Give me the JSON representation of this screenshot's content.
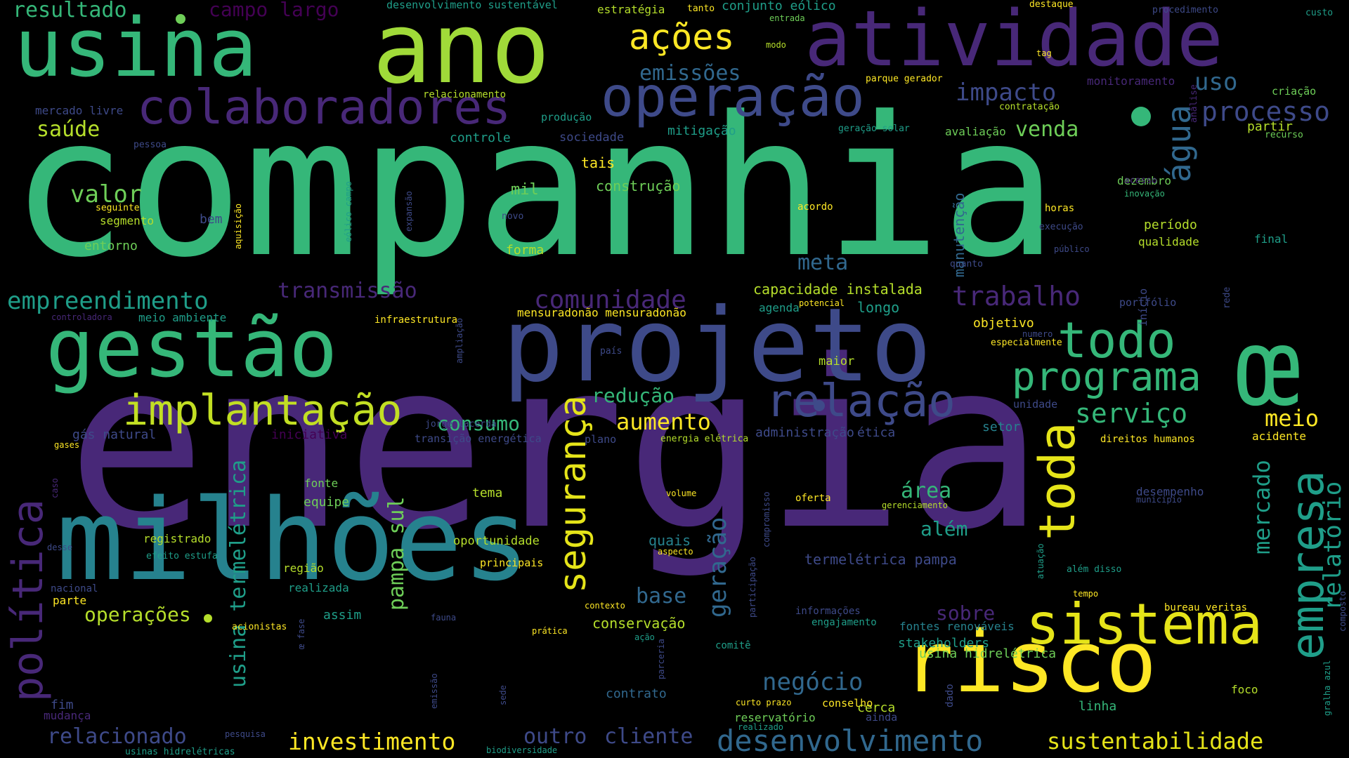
{
  "palette": {
    "deep_purple": "#440154",
    "purple": "#482878",
    "indigo": "#3e4a89",
    "blue": "#31688e",
    "teal": "#26828e",
    "green_teal": "#1f9e89",
    "green": "#35b779",
    "lime": "#6ece58",
    "yellow_green": "#b5de2b",
    "yellow": "#fde725"
  },
  "words": [
    {
      "text": "energia",
      "color": "#482878"
    },
    {
      "text": "companhia",
      "color": "#35b779"
    },
    {
      "text": "milhões",
      "color": "#26828e"
    },
    {
      "text": "projeto",
      "color": "#3e4a89"
    },
    {
      "text": "gestão",
      "color": "#35b779"
    },
    {
      "text": "ano",
      "color": "#a0da39"
    },
    {
      "text": "usina",
      "color": "#35b779"
    },
    {
      "text": "atividade",
      "color": "#482878"
    },
    {
      "text": "risco",
      "color": "#fde725"
    },
    {
      "text": "colaboradores",
      "color": "#482878"
    },
    {
      "text": "operação",
      "color": "#3e4a89"
    },
    {
      "text": "sistema",
      "color": "#e5e419"
    },
    {
      "text": "relação",
      "color": "#3e4a89"
    },
    {
      "text": "implantação",
      "color": "#c2df23"
    },
    {
      "text": "todo",
      "color": "#35b779"
    },
    {
      "text": "programa",
      "color": "#35b779"
    },
    {
      "text": "empresa",
      "color": "#1f9e89"
    },
    {
      "text": "política",
      "color": "#482878"
    },
    {
      "text": "segurança",
      "color": "#e5e419"
    },
    {
      "text": "toda",
      "color": "#e5e419"
    },
    {
      "text": "água",
      "color": "#31688e"
    },
    {
      "text": "desenvolvimento",
      "color": "#31688e"
    },
    {
      "text": "sustentabilidade",
      "color": "#e5e419"
    },
    {
      "text": "investimento",
      "color": "#fde725"
    },
    {
      "text": "empreendimento",
      "color": "#1f9e89"
    },
    {
      "text": "processo",
      "color": "#3e4a89"
    },
    {
      "text": "trabalho",
      "color": "#482878"
    },
    {
      "text": "comunidade",
      "color": "#482878"
    },
    {
      "text": "ações",
      "color": "#fde725"
    },
    {
      "text": "impacto",
      "color": "#3e4a89"
    },
    {
      "text": "uso",
      "color": "#31688e"
    },
    {
      "text": "emissões",
      "color": "#31688e"
    },
    {
      "text": "resultado",
      "color": "#35b779"
    },
    {
      "text": "campo largo",
      "color": "#440154"
    },
    {
      "text": "valor",
      "color": "#6ece58"
    },
    {
      "text": "saúde",
      "color": "#b5de2b"
    },
    {
      "text": "venda",
      "color": "#6ece58"
    },
    {
      "text": "serviço",
      "color": "#35b779"
    },
    {
      "text": "meio",
      "color": "#fde725"
    },
    {
      "text": "consumo",
      "color": "#35b779"
    },
    {
      "text": "redução",
      "color": "#35b779"
    },
    {
      "text": "aumento",
      "color": "#fde725"
    },
    {
      "text": "transmissão",
      "color": "#482878"
    },
    {
      "text": "mercado",
      "color": "#1f9e89"
    },
    {
      "text": "relatório",
      "color": "#1f9e89"
    },
    {
      "text": "negócio",
      "color": "#31688e"
    },
    {
      "text": "base",
      "color": "#31688e"
    },
    {
      "text": "geração",
      "color": "#31688e"
    },
    {
      "text": "pampa sul",
      "color": "#6ece58"
    },
    {
      "text": "usina termelétrica",
      "color": "#1f9e89"
    },
    {
      "text": "operações",
      "color": "#b5de2b"
    },
    {
      "text": "relacionado",
      "color": "#3e4a89"
    },
    {
      "text": "cliente",
      "color": "#3e4a89"
    },
    {
      "text": "outro",
      "color": "#3e4a89"
    },
    {
      "text": "meta",
      "color": "#31688e"
    },
    {
      "text": "área",
      "color": "#35b779"
    },
    {
      "text": "além",
      "color": "#1f9e89"
    },
    {
      "text": "sobre",
      "color": "#482878"
    },
    {
      "text": "capacidade instalada",
      "color": "#b5de2b"
    },
    {
      "text": "mil",
      "color": "#6ece58"
    },
    {
      "text": "construção",
      "color": "#6ece58"
    },
    {
      "text": "tais",
      "color": "#fde725"
    },
    {
      "text": "mitigação",
      "color": "#1f9e89"
    },
    {
      "text": "controle",
      "color": "#1f9e89"
    },
    {
      "text": "produção",
      "color": "#1f9e89"
    },
    {
      "text": "sociedade",
      "color": "#3e4a89"
    },
    {
      "text": "monitoramento",
      "color": "#482878"
    },
    {
      "text": "avaliação",
      "color": "#6ece58"
    },
    {
      "text": "partir",
      "color": "#b5de2b"
    },
    {
      "text": "dezembro",
      "color": "#6ece58"
    },
    {
      "text": "período",
      "color": "#b5de2b"
    },
    {
      "text": "qualidade",
      "color": "#b5de2b"
    },
    {
      "text": "manutenção",
      "color": "#31688e"
    },
    {
      "text": "entorno",
      "color": "#6ece58"
    },
    {
      "text": "segmento",
      "color": "#b5de2b"
    },
    {
      "text": "bem",
      "color": "#3e4a89"
    },
    {
      "text": "forma",
      "color": "#b5de2b"
    },
    {
      "text": "longo",
      "color": "#1f9e89"
    },
    {
      "text": "agenda",
      "color": "#1f9e89"
    },
    {
      "text": "objetivo",
      "color": "#fde725"
    },
    {
      "text": "maior",
      "color": "#b5de2b"
    },
    {
      "text": "setor",
      "color": "#26828e"
    },
    {
      "text": "ética",
      "color": "#3e4a89"
    },
    {
      "text": "administração",
      "color": "#3e4a89"
    },
    {
      "text": "meio ambiente",
      "color": "#1f9e89"
    },
    {
      "text": "infraestrutura",
      "color": "#fde725"
    },
    {
      "text": "mensuradonão mensuradonão",
      "color": "#fde725"
    },
    {
      "text": "fonte",
      "color": "#6ece58"
    },
    {
      "text": "equipe",
      "color": "#6ece58"
    },
    {
      "text": "tema",
      "color": "#b5de2b"
    },
    {
      "text": "quais",
      "color": "#26828e"
    },
    {
      "text": "oportunidade",
      "color": "#b5de2b"
    },
    {
      "text": "principais",
      "color": "#fde725"
    },
    {
      "text": "região",
      "color": "#b5de2b"
    },
    {
      "text": "realizada",
      "color": "#1f9e89"
    },
    {
      "text": "assim",
      "color": "#1f9e89"
    },
    {
      "text": "conservação",
      "color": "#b5de2b"
    },
    {
      "text": "contrato",
      "color": "#31688e"
    },
    {
      "text": "reservatório",
      "color": "#6ece58"
    },
    {
      "text": "cerca",
      "color": "#b5de2b"
    },
    {
      "text": "termelétrica pampa",
      "color": "#3e4a89"
    },
    {
      "text": "stakeholders",
      "color": "#1f9e89"
    },
    {
      "text": "usina hidrelétrica",
      "color": "#6ece58"
    },
    {
      "text": "fontes renováveis",
      "color": "#26828e"
    },
    {
      "text": "linha",
      "color": "#35b779"
    },
    {
      "text": "registrado",
      "color": "#b5de2b"
    },
    {
      "text": "gás natural",
      "color": "#3e4a89"
    },
    {
      "text": "iniciativa",
      "color": "#440154"
    },
    {
      "text": "transição energética",
      "color": "#3e4a89"
    },
    {
      "text": "plano",
      "color": "#3e4a89"
    },
    {
      "text": "energia elétrica",
      "color": "#b5de2b"
    },
    {
      "text": "direitos humanos",
      "color": "#fde725"
    },
    {
      "text": "acidente",
      "color": "#fde725"
    },
    {
      "text": "desempenho",
      "color": "#3e4a89"
    },
    {
      "text": "fim",
      "color": "#3e4a89"
    },
    {
      "text": "mudança",
      "color": "#482878"
    },
    {
      "text": "parte",
      "color": "#fde725"
    },
    {
      "text": "nacional",
      "color": "#3e4a89"
    },
    {
      "text": "acionistas",
      "color": "#fde725"
    },
    {
      "text": "informações",
      "color": "#3e4a89"
    },
    {
      "text": "engajamento",
      "color": "#1f9e89"
    },
    {
      "text": "comitê",
      "color": "#1f9e89"
    },
    {
      "text": "conselho",
      "color": "#fde725"
    },
    {
      "text": "ainda",
      "color": "#3e4a89"
    },
    {
      "text": "foco",
      "color": "#b5de2b"
    },
    {
      "text": "bureau veritas",
      "color": "#fde725"
    },
    {
      "text": "oferta",
      "color": "#fde725"
    },
    {
      "text": "gerenciamento",
      "color": "#b5de2b"
    },
    {
      "text": "jorge lacerda",
      "color": "#3e4a89"
    },
    {
      "text": "além disso",
      "color": "#1f9e89"
    },
    {
      "text": "horas",
      "color": "#fde725"
    },
    {
      "text": "acordo",
      "color": "#fde725"
    },
    {
      "text": "final",
      "color": "#1f9e89"
    },
    {
      "text": "portfólio",
      "color": "#3e4a89"
    },
    {
      "text": "unidade",
      "color": "#3e4a89"
    },
    {
      "text": "especialmente",
      "color": "#fde725"
    },
    {
      "text": "contratação",
      "color": "#b5de2b"
    },
    {
      "text": "criação",
      "color": "#6ece58"
    },
    {
      "text": "recurso",
      "color": "#6ece58"
    },
    {
      "text": "custo",
      "color": "#1f9e89"
    },
    {
      "text": "procedimento",
      "color": "#3e4a89"
    },
    {
      "text": "destaque",
      "color": "#fde725"
    },
    {
      "text": "conjunto eólico",
      "color": "#1f9e89"
    },
    {
      "text": "estratégia",
      "color": "#b5de2b"
    },
    {
      "text": "tanto",
      "color": "#fde725"
    },
    {
      "text": "desenvolvimento sustentável",
      "color": "#1f9e89"
    },
    {
      "text": "entrada",
      "color": "#6ece58"
    },
    {
      "text": "modo",
      "color": "#b5de2b"
    },
    {
      "text": "tag",
      "color": "#fde725"
    },
    {
      "text": "parque gerador",
      "color": "#fde725"
    },
    {
      "text": "relacionamento",
      "color": "#b5de2b"
    },
    {
      "text": "mercado livre",
      "color": "#3e4a89"
    },
    {
      "text": "pessoa",
      "color": "#3e4a89"
    },
    {
      "text": "geração solar",
      "color": "#1f9e89"
    },
    {
      "text": "seguinte",
      "color": "#fde725"
    },
    {
      "text": "novo",
      "color": "#3e4a89"
    },
    {
      "text": "execução",
      "color": "#3e4a89"
    },
    {
      "text": "público",
      "color": "#3e4a89"
    },
    {
      "text": "acesso",
      "color": "#482878"
    },
    {
      "text": "inovação",
      "color": "#35b779"
    },
    {
      "text": "quanto",
      "color": "#3e4a89"
    },
    {
      "text": "potencial",
      "color": "#fde725"
    },
    {
      "text": "controladora",
      "color": "#482878"
    },
    {
      "text": "gases",
      "color": "#fde725"
    },
    {
      "text": "caso",
      "color": "#482878"
    },
    {
      "text": "desse",
      "color": "#3e4a89"
    },
    {
      "text": "efeito estufa",
      "color": "#1f9e89"
    },
    {
      "text": "pesquisa",
      "color": "#3e4a89"
    },
    {
      "text": "usinas hidrelétricas",
      "color": "#1f9e89"
    },
    {
      "text": "biodiversidade",
      "color": "#1f9e89"
    },
    {
      "text": "fauna",
      "color": "#3e4a89"
    },
    {
      "text": "contexto",
      "color": "#fde725"
    },
    {
      "text": "prática",
      "color": "#fde725"
    },
    {
      "text": "ação",
      "color": "#1f9e89"
    },
    {
      "text": "aspecto",
      "color": "#fde725"
    },
    {
      "text": "volume",
      "color": "#fde725"
    },
    {
      "text": "curto prazo",
      "color": "#fde725"
    },
    {
      "text": "realizado",
      "color": "#1f9e89"
    },
    {
      "text": "dado",
      "color": "#3e4a89"
    },
    {
      "text": "tempo",
      "color": "#fde725"
    },
    {
      "text": "município",
      "color": "#3e4a89"
    },
    {
      "text": "numero",
      "color": "#3e4a89"
    },
    {
      "text": "país",
      "color": "#3e4a89"
    },
    {
      "text": "sede",
      "color": "#3e4a89"
    },
    {
      "text": "emissão",
      "color": "#3e4a89"
    },
    {
      "text": "parceria",
      "color": "#3e4a89"
    },
    {
      "text": "compromisso",
      "color": "#3e4a89"
    },
    {
      "text": "participação",
      "color": "#3e4a89"
    },
    {
      "text": "atuação",
      "color": "#1f9e89"
    },
    {
      "text": "análise",
      "color": "#482878"
    },
    {
      "text": "início",
      "color": "#3e4a89"
    },
    {
      "text": "rede",
      "color": "#3e4a89"
    },
    {
      "text": "aquisição",
      "color": "#fde725"
    },
    {
      "text": "eólico campo",
      "color": "#1f9e89"
    },
    {
      "text": "expansão",
      "color": "#3e4a89"
    },
    {
      "text": "ampliação",
      "color": "#3e4a89"
    },
    {
      "text": "œ fase",
      "color": "#3e4a89"
    },
    {
      "text": "gralha azul",
      "color": "#1f9e89"
    },
    {
      "text": "composto",
      "color": "#3e4a89"
    },
    {
      "text": "œ",
      "color": "#35b779"
    }
  ]
}
